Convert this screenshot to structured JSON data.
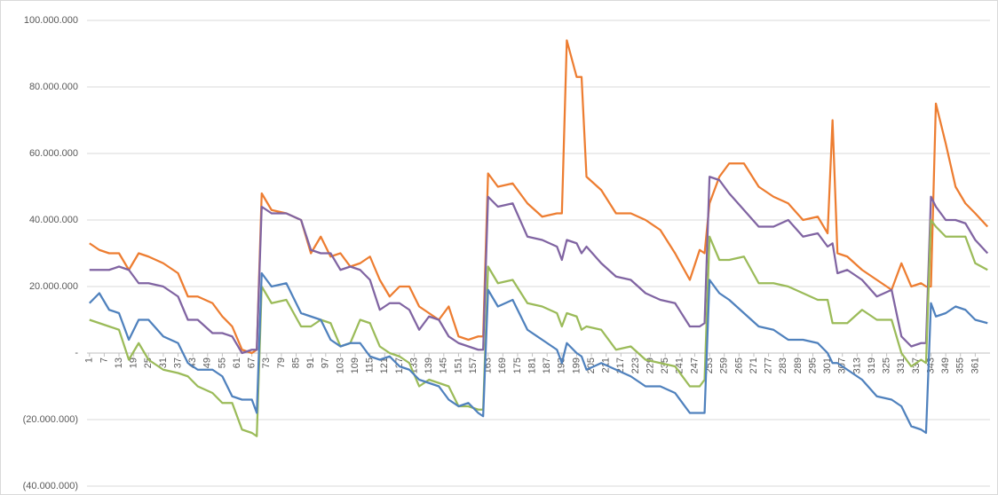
{
  "chart_data": {
    "type": "line",
    "x": [
      1,
      5,
      9,
      13,
      17,
      21,
      25,
      31,
      37,
      41,
      45,
      51,
      55,
      59,
      63,
      67,
      69,
      71,
      75,
      81,
      87,
      91,
      95,
      99,
      103,
      107,
      111,
      115,
      119,
      123,
      127,
      131,
      135,
      139,
      143,
      147,
      151,
      155,
      159,
      161,
      163,
      167,
      173,
      179,
      185,
      191,
      193,
      195,
      199,
      201,
      203,
      209,
      215,
      221,
      227,
      233,
      239,
      245,
      249,
      251,
      253,
      257,
      261,
      267,
      273,
      279,
      285,
      291,
      297,
      301,
      303,
      305,
      309,
      315,
      321,
      327,
      331,
      335,
      339,
      341,
      343,
      345,
      349,
      353,
      357,
      361,
      366
    ],
    "xlim": [
      0,
      367
    ],
    "xticks": [
      1,
      7,
      13,
      19,
      25,
      31,
      37,
      43,
      49,
      55,
      61,
      67,
      73,
      79,
      85,
      91,
      97,
      103,
      109,
      115,
      121,
      127,
      133,
      139,
      145,
      151,
      157,
      163,
      169,
      175,
      181,
      187,
      193,
      199,
      205,
      211,
      217,
      223,
      229,
      235,
      241,
      247,
      253,
      259,
      265,
      271,
      277,
      283,
      289,
      295,
      301,
      307,
      313,
      319,
      325,
      331,
      337,
      343,
      349,
      355,
      361
    ],
    "ylim": [
      -40000000,
      100000000
    ],
    "yticks": [
      {
        "value": -40000000,
        "label": "(40.000.000)"
      },
      {
        "value": -20000000,
        "label": "(20.000.000)"
      },
      {
        "value": 0,
        "label": "-"
      },
      {
        "value": 20000000,
        "label": "20.000.000"
      },
      {
        "value": 40000000,
        "label": "40.000.000"
      },
      {
        "value": 60000000,
        "label": "60.000.000"
      },
      {
        "value": 80000000,
        "label": "80.000.000"
      },
      {
        "value": 100000000,
        "label": "100.000.000"
      }
    ],
    "grid": true,
    "series": [
      {
        "color": "#ed7d31",
        "values": [
          33000000,
          31000000,
          30000000,
          30000000,
          25000000,
          30000000,
          29000000,
          27000000,
          24000000,
          17000000,
          17000000,
          15000000,
          11000000,
          8000000,
          1000000,
          0,
          1000000,
          48000000,
          43000000,
          42000000,
          40000000,
          30000000,
          35000000,
          29000000,
          30000000,
          26000000,
          27000000,
          29000000,
          22000000,
          17000000,
          20000000,
          20000000,
          14000000,
          12000000,
          10000000,
          14000000,
          5000000,
          4000000,
          5000000,
          5000000,
          54000000,
          50000000,
          51000000,
          45000000,
          41000000,
          42000000,
          42000000,
          94000000,
          83000000,
          83000000,
          53000000,
          49000000,
          42000000,
          42000000,
          40000000,
          37000000,
          30000000,
          22000000,
          31000000,
          30000000,
          45000000,
          53000000,
          57000000,
          57000000,
          50000000,
          47000000,
          45000000,
          40000000,
          41000000,
          36000000,
          70000000,
          30000000,
          29000000,
          25000000,
          22000000,
          19000000,
          27000000,
          20000000,
          21000000,
          20000000,
          20000000,
          75000000,
          63000000,
          50000000,
          45000000,
          42000000,
          38000000
        ]
      },
      {
        "color": "#8064a2",
        "values": [
          25000000,
          25000000,
          25000000,
          26000000,
          25000000,
          21000000,
          21000000,
          20000000,
          17000000,
          10000000,
          10000000,
          6000000,
          6000000,
          5000000,
          0,
          1000000,
          1000000,
          44000000,
          42000000,
          42000000,
          40000000,
          31000000,
          30000000,
          30000000,
          25000000,
          26000000,
          25000000,
          22000000,
          13000000,
          15000000,
          15000000,
          13000000,
          7000000,
          11000000,
          10000000,
          5000000,
          3000000,
          2000000,
          1000000,
          1000000,
          47000000,
          44000000,
          45000000,
          35000000,
          34000000,
          32000000,
          28000000,
          34000000,
          33000000,
          30000000,
          32000000,
          27000000,
          23000000,
          22000000,
          18000000,
          16000000,
          15000000,
          8000000,
          8000000,
          9000000,
          53000000,
          52000000,
          48000000,
          43000000,
          38000000,
          38000000,
          40000000,
          35000000,
          36000000,
          32000000,
          33000000,
          24000000,
          25000000,
          22000000,
          17000000,
          19000000,
          5000000,
          2000000,
          3000000,
          3000000,
          47000000,
          44000000,
          40000000,
          40000000,
          39000000,
          34000000,
          30000000
        ]
      },
      {
        "color": "#9bbb59",
        "values": [
          10000000,
          9000000,
          8000000,
          7000000,
          -2000000,
          3000000,
          -2000000,
          -5000000,
          -6000000,
          -7000000,
          -10000000,
          -12000000,
          -15000000,
          -15000000,
          -23000000,
          -24000000,
          -25000000,
          20000000,
          15000000,
          16000000,
          8000000,
          8000000,
          10000000,
          9000000,
          2000000,
          3000000,
          10000000,
          9000000,
          2000000,
          0,
          -1000000,
          -3000000,
          -10000000,
          -8000000,
          -9000000,
          -10000000,
          -16000000,
          -16000000,
          -17000000,
          -17000000,
          26000000,
          21000000,
          22000000,
          15000000,
          14000000,
          12000000,
          8000000,
          12000000,
          11000000,
          7000000,
          8000000,
          7000000,
          1000000,
          2000000,
          -2000000,
          -3000000,
          -4000000,
          -10000000,
          -10000000,
          -8000000,
          35000000,
          28000000,
          28000000,
          29000000,
          21000000,
          21000000,
          20000000,
          18000000,
          16000000,
          16000000,
          9000000,
          9000000,
          9000000,
          13000000,
          10000000,
          10000000,
          0,
          -4000000,
          -2000000,
          -3000000,
          40000000,
          38000000,
          35000000,
          35000000,
          35000000,
          27000000,
          25000000
        ]
      },
      {
        "color": "#4f81bd",
        "values": [
          15000000,
          18000000,
          13000000,
          12000000,
          4000000,
          10000000,
          10000000,
          5000000,
          3000000,
          -3000000,
          -5000000,
          -5000000,
          -7000000,
          -13000000,
          -14000000,
          -14000000,
          -18000000,
          24000000,
          20000000,
          21000000,
          12000000,
          11000000,
          10000000,
          4000000,
          2000000,
          3000000,
          3000000,
          -1000000,
          -2000000,
          -1000000,
          -4000000,
          -5000000,
          -8000000,
          -9000000,
          -10000000,
          -14000000,
          -16000000,
          -15000000,
          -18000000,
          -19000000,
          19000000,
          14000000,
          16000000,
          7000000,
          4000000,
          1000000,
          -3000000,
          3000000,
          0,
          -1000000,
          -5000000,
          -3000000,
          -5000000,
          -7000000,
          -10000000,
          -10000000,
          -12000000,
          -18000000,
          -18000000,
          -18000000,
          22000000,
          18000000,
          16000000,
          12000000,
          8000000,
          7000000,
          4000000,
          4000000,
          3000000,
          0,
          -3000000,
          -3000000,
          -5000000,
          -8000000,
          -13000000,
          -14000000,
          -16000000,
          -22000000,
          -23000000,
          -24000000,
          15000000,
          11000000,
          12000000,
          14000000,
          13000000,
          10000000,
          9000000
        ]
      }
    ]
  }
}
